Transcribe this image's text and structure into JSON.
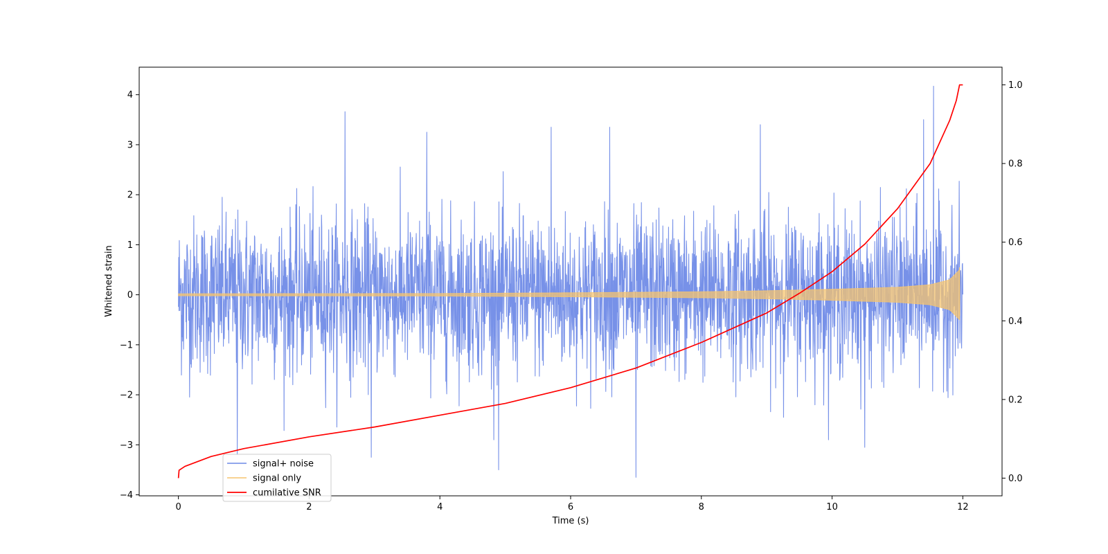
{
  "chart_data": {
    "type": "line",
    "title": "",
    "xlabel": "Time (s)",
    "ylabel": "Whitened strain",
    "y2label": "",
    "xlim": [
      -0.6,
      12.6
    ],
    "ylim": [
      -4.02,
      4.55
    ],
    "y2lim": [
      -0.045,
      1.045
    ],
    "x_ticks": [
      0,
      2,
      4,
      6,
      8,
      10,
      12
    ],
    "x_tick_labels": [
      "0",
      "2",
      "4",
      "6",
      "8",
      "10",
      "12"
    ],
    "y_ticks": [
      -4,
      -3,
      -2,
      -1,
      0,
      1,
      2,
      3,
      4
    ],
    "y_tick_labels": [
      "−4",
      "−3",
      "−2",
      "−1",
      "0",
      "1",
      "2",
      "3",
      "4"
    ],
    "y2_ticks": [
      0.0,
      0.2,
      0.4,
      0.6,
      0.8,
      1.0
    ],
    "y2_tick_labels": [
      "0.0",
      "0.2",
      "0.4",
      "0.6",
      "0.8",
      "1.0"
    ],
    "grid": false,
    "legend_position": "lower-left",
    "series": [
      {
        "name": "signal+ noise",
        "axis": "left",
        "color": "#6b88e6",
        "time_range": [
          0,
          12
        ],
        "typical_band": [
          -1.6,
          1.6
        ],
        "peaks": [
          {
            "x": 2.55,
            "y": 3.66
          },
          {
            "x": 11.55,
            "y": 4.17
          },
          {
            "x": 11.4,
            "y": 3.5
          },
          {
            "x": 5.7,
            "y": 3.35
          },
          {
            "x": 6.6,
            "y": 3.35
          },
          {
            "x": 8.9,
            "y": 3.4
          },
          {
            "x": 3.8,
            "y": 3.25
          },
          {
            "x": 4.9,
            "y": -3.5
          },
          {
            "x": 7.0,
            "y": -3.65
          },
          {
            "x": 2.95,
            "y": -3.25
          },
          {
            "x": 0.9,
            "y": -3.2
          },
          {
            "x": 10.5,
            "y": -3.05
          }
        ]
      },
      {
        "name": "signal only",
        "axis": "left",
        "color": "#f5c46f",
        "time_range": [
          0,
          11.95
        ],
        "envelope": [
          {
            "x": 0,
            "y": 0.02
          },
          {
            "x": 4,
            "y": 0.025
          },
          {
            "x": 6,
            "y": 0.04
          },
          {
            "x": 8,
            "y": 0.06
          },
          {
            "x": 9,
            "y": 0.08
          },
          {
            "x": 10,
            "y": 0.11
          },
          {
            "x": 11,
            "y": 0.15
          },
          {
            "x": 11.5,
            "y": 0.2
          },
          {
            "x": 11.8,
            "y": 0.3
          },
          {
            "x": 11.95,
            "y": 0.5
          }
        ]
      },
      {
        "name": "cumilative SNR",
        "axis": "right",
        "color": "#ff0000",
        "x": [
          0,
          0.01,
          0.1,
          0.5,
          1,
          2,
          3,
          4,
          5,
          6,
          7,
          8,
          9,
          9.5,
          10,
          10.5,
          11,
          11.5,
          11.8,
          11.9,
          11.95,
          12
        ],
        "values": [
          0.0,
          0.02,
          0.03,
          0.055,
          0.075,
          0.105,
          0.13,
          0.16,
          0.19,
          0.23,
          0.28,
          0.345,
          0.42,
          0.47,
          0.525,
          0.595,
          0.685,
          0.8,
          0.91,
          0.96,
          1.0,
          1.0
        ]
      }
    ]
  }
}
